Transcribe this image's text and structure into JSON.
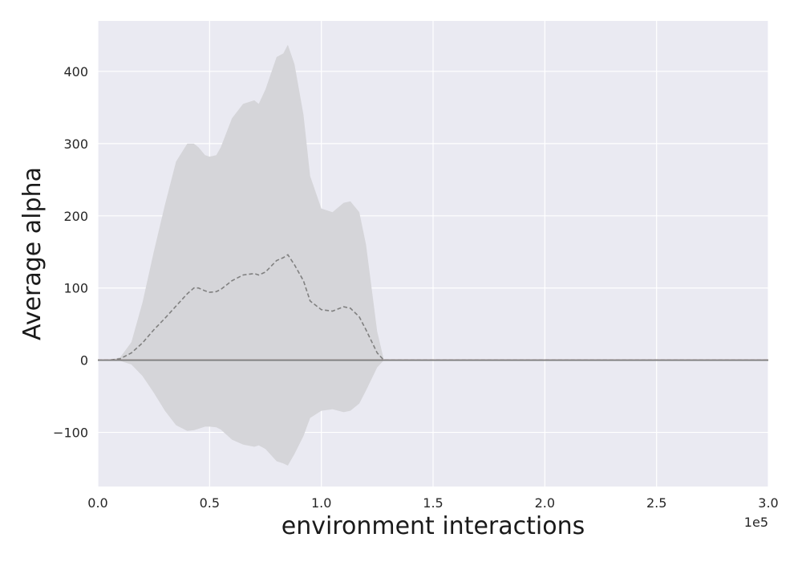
{
  "chart_data": {
    "type": "line",
    "title": "",
    "xlabel": "environment interactions",
    "ylabel": "Average alpha",
    "x_offset_label": "1e5",
    "xlim": [
      0,
      300000
    ],
    "ylim": [
      -175,
      470
    ],
    "x_ticks": [
      0,
      50000,
      100000,
      150000,
      200000,
      250000,
      300000
    ],
    "x_tick_labels": [
      "0.0",
      "0.5",
      "1.0",
      "1.5",
      "2.0",
      "2.5",
      "3.0"
    ],
    "y_ticks": [
      -100,
      0,
      100,
      200,
      300,
      400
    ],
    "y_tick_labels": [
      "−100",
      "0",
      "100",
      "200",
      "300",
      "400"
    ],
    "grid": true,
    "background": "#eaeaf2",
    "series": [
      {
        "style": "dashed",
        "color": "#808080",
        "band_color": "#d5d5d9",
        "x": [
          0,
          5000,
          10000,
          15000,
          20000,
          25000,
          30000,
          35000,
          40000,
          43000,
          45000,
          48000,
          50000,
          53000,
          55000,
          60000,
          65000,
          70000,
          72000,
          75000,
          80000,
          83000,
          85000,
          88000,
          92000,
          95000,
          100000,
          105000,
          110000,
          113000,
          117000,
          120000,
          125000,
          128000,
          130000,
          300000
        ],
        "mean": [
          0,
          0,
          2,
          10,
          24,
          42,
          58,
          75,
          92,
          100,
          100,
          96,
          94,
          95,
          98,
          110,
          118,
          120,
          118,
          122,
          138,
          142,
          146,
          132,
          110,
          82,
          70,
          68,
          74,
          72,
          60,
          42,
          10,
          0,
          0,
          0
        ],
        "upper": [
          0,
          0,
          4,
          25,
          80,
          150,
          215,
          275,
          300,
          300,
          295,
          284,
          282,
          284,
          295,
          335,
          355,
          360,
          355,
          375,
          420,
          425,
          437,
          410,
          340,
          255,
          210,
          205,
          218,
          220,
          205,
          160,
          40,
          0,
          0,
          0
        ],
        "lower": [
          0,
          0,
          -1,
          -6,
          -22,
          -45,
          -70,
          -90,
          -98,
          -97,
          -95,
          -92,
          -92,
          -93,
          -96,
          -110,
          -117,
          -120,
          -118,
          -123,
          -140,
          -143,
          -146,
          -130,
          -105,
          -80,
          -70,
          -68,
          -72,
          -70,
          -60,
          -42,
          -10,
          0,
          0,
          0
        ]
      },
      {
        "style": "solid",
        "color": "#b4827a",
        "x": [
          0,
          300000
        ],
        "mean": [
          0,
          0
        ]
      },
      {
        "style": "solid",
        "color": "#7d7d7d",
        "x": [
          0,
          300000
        ],
        "mean": [
          0,
          0
        ]
      }
    ]
  }
}
